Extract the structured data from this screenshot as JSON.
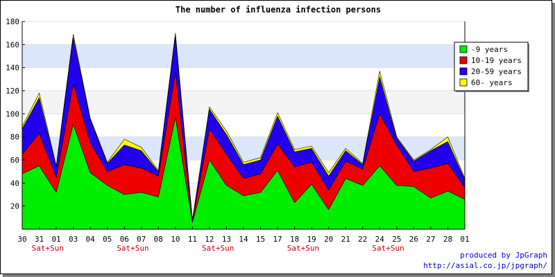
{
  "chart_data": {
    "type": "area",
    "stacked": true,
    "title": "The number of influenza infection persons",
    "xlabel": "",
    "ylabel": "",
    "ylim": [
      0,
      180
    ],
    "yticks": [
      20,
      40,
      60,
      80,
      100,
      120,
      140,
      160,
      180
    ],
    "grid": true,
    "legend_position": "top-right",
    "categories": [
      "30",
      "31",
      "01",
      "03",
      "04",
      "05",
      "06",
      "07",
      "08",
      "10",
      "11",
      "12",
      "13",
      "14",
      "15",
      "17",
      "18",
      "19",
      "20",
      "21",
      "22",
      "24",
      "25",
      "26",
      "27",
      "28",
      "01"
    ],
    "weekend_marks": [
      {
        "after_index": 1,
        "text": "Sat+Sun"
      },
      {
        "after_index": 6,
        "text": "Sat+Sun"
      },
      {
        "after_index": 11,
        "text": "Sat+Sun"
      },
      {
        "after_index": 16,
        "text": "Sat+Sun"
      },
      {
        "after_index": 21,
        "text": "Sat+Sun"
      }
    ],
    "series": [
      {
        "name": "-9 years",
        "color": "#00ee00",
        "values": [
          48,
          55,
          32,
          91,
          49,
          38,
          30,
          32,
          28,
          97,
          6,
          60,
          38,
          29,
          32,
          51,
          23,
          39,
          17,
          44,
          38,
          55,
          38,
          37,
          27,
          33,
          26
        ]
      },
      {
        "name": "10-19 years",
        "color": "#ee0000",
        "values": [
          17,
          28,
          13,
          35,
          26,
          12,
          26,
          21,
          18,
          39,
          1,
          27,
          27,
          15,
          16,
          23,
          31,
          19,
          17,
          15,
          14,
          45,
          35,
          13,
          26,
          24,
          10
        ]
      },
      {
        "name": "20-59 years",
        "color": "#2200ee",
        "values": [
          22,
          31,
          9,
          40,
          20,
          7,
          17,
          15,
          4,
          31,
          1,
          17,
          17,
          12,
          12,
          24,
          13,
          12,
          12,
          9,
          4,
          32,
          6,
          9,
          15,
          19,
          7
        ]
      },
      {
        "name": "60- years",
        "color": "#ffff00",
        "values": [
          2,
          4,
          1,
          3,
          1,
          1,
          5,
          3,
          1,
          3,
          0,
          2,
          3,
          2,
          2,
          3,
          2,
          2,
          3,
          2,
          1,
          5,
          1,
          1,
          1,
          4,
          1
        ]
      }
    ]
  },
  "credit": {
    "line1": "produced by JpGraph",
    "line2": "http://asial.co.jp/jpgraph/"
  }
}
